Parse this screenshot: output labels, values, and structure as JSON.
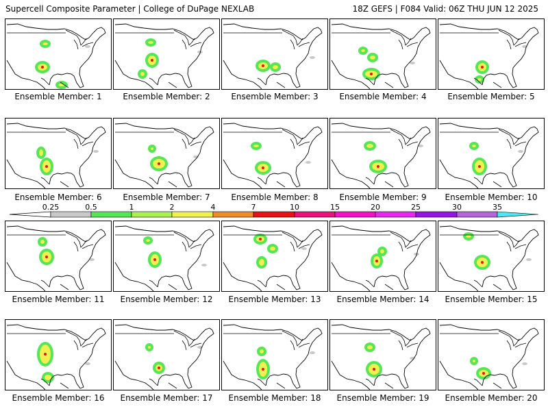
{
  "header": {
    "title": "Supercell Composite Parameter | College of DuPage NEXLAB",
    "run_info": "18Z GEFS | F084 Valid: 06Z THU JUN 12 2025"
  },
  "caption_prefix": "Ensemble Member:",
  "members": [
    "1",
    "2",
    "3",
    "4",
    "5",
    "6",
    "7",
    "8",
    "9",
    "10",
    "11",
    "12",
    "13",
    "14",
    "15",
    "16",
    "17",
    "18",
    "19",
    "20"
  ],
  "colorbar": {
    "ticks": [
      "0.25",
      "0.5",
      "1",
      "2",
      "4",
      "7",
      "10",
      "15",
      "20",
      "25",
      "30",
      "35"
    ],
    "colors": [
      "#c8c8c8",
      "#55e655",
      "#aaf050",
      "#f0f050",
      "#f08c28",
      "#e61414",
      "#e6147c",
      "#f014c8",
      "#e628f0",
      "#9614e6",
      "#b464dc",
      "#50e6f0"
    ]
  },
  "icons": {
    "map": "conus-outline-map"
  }
}
